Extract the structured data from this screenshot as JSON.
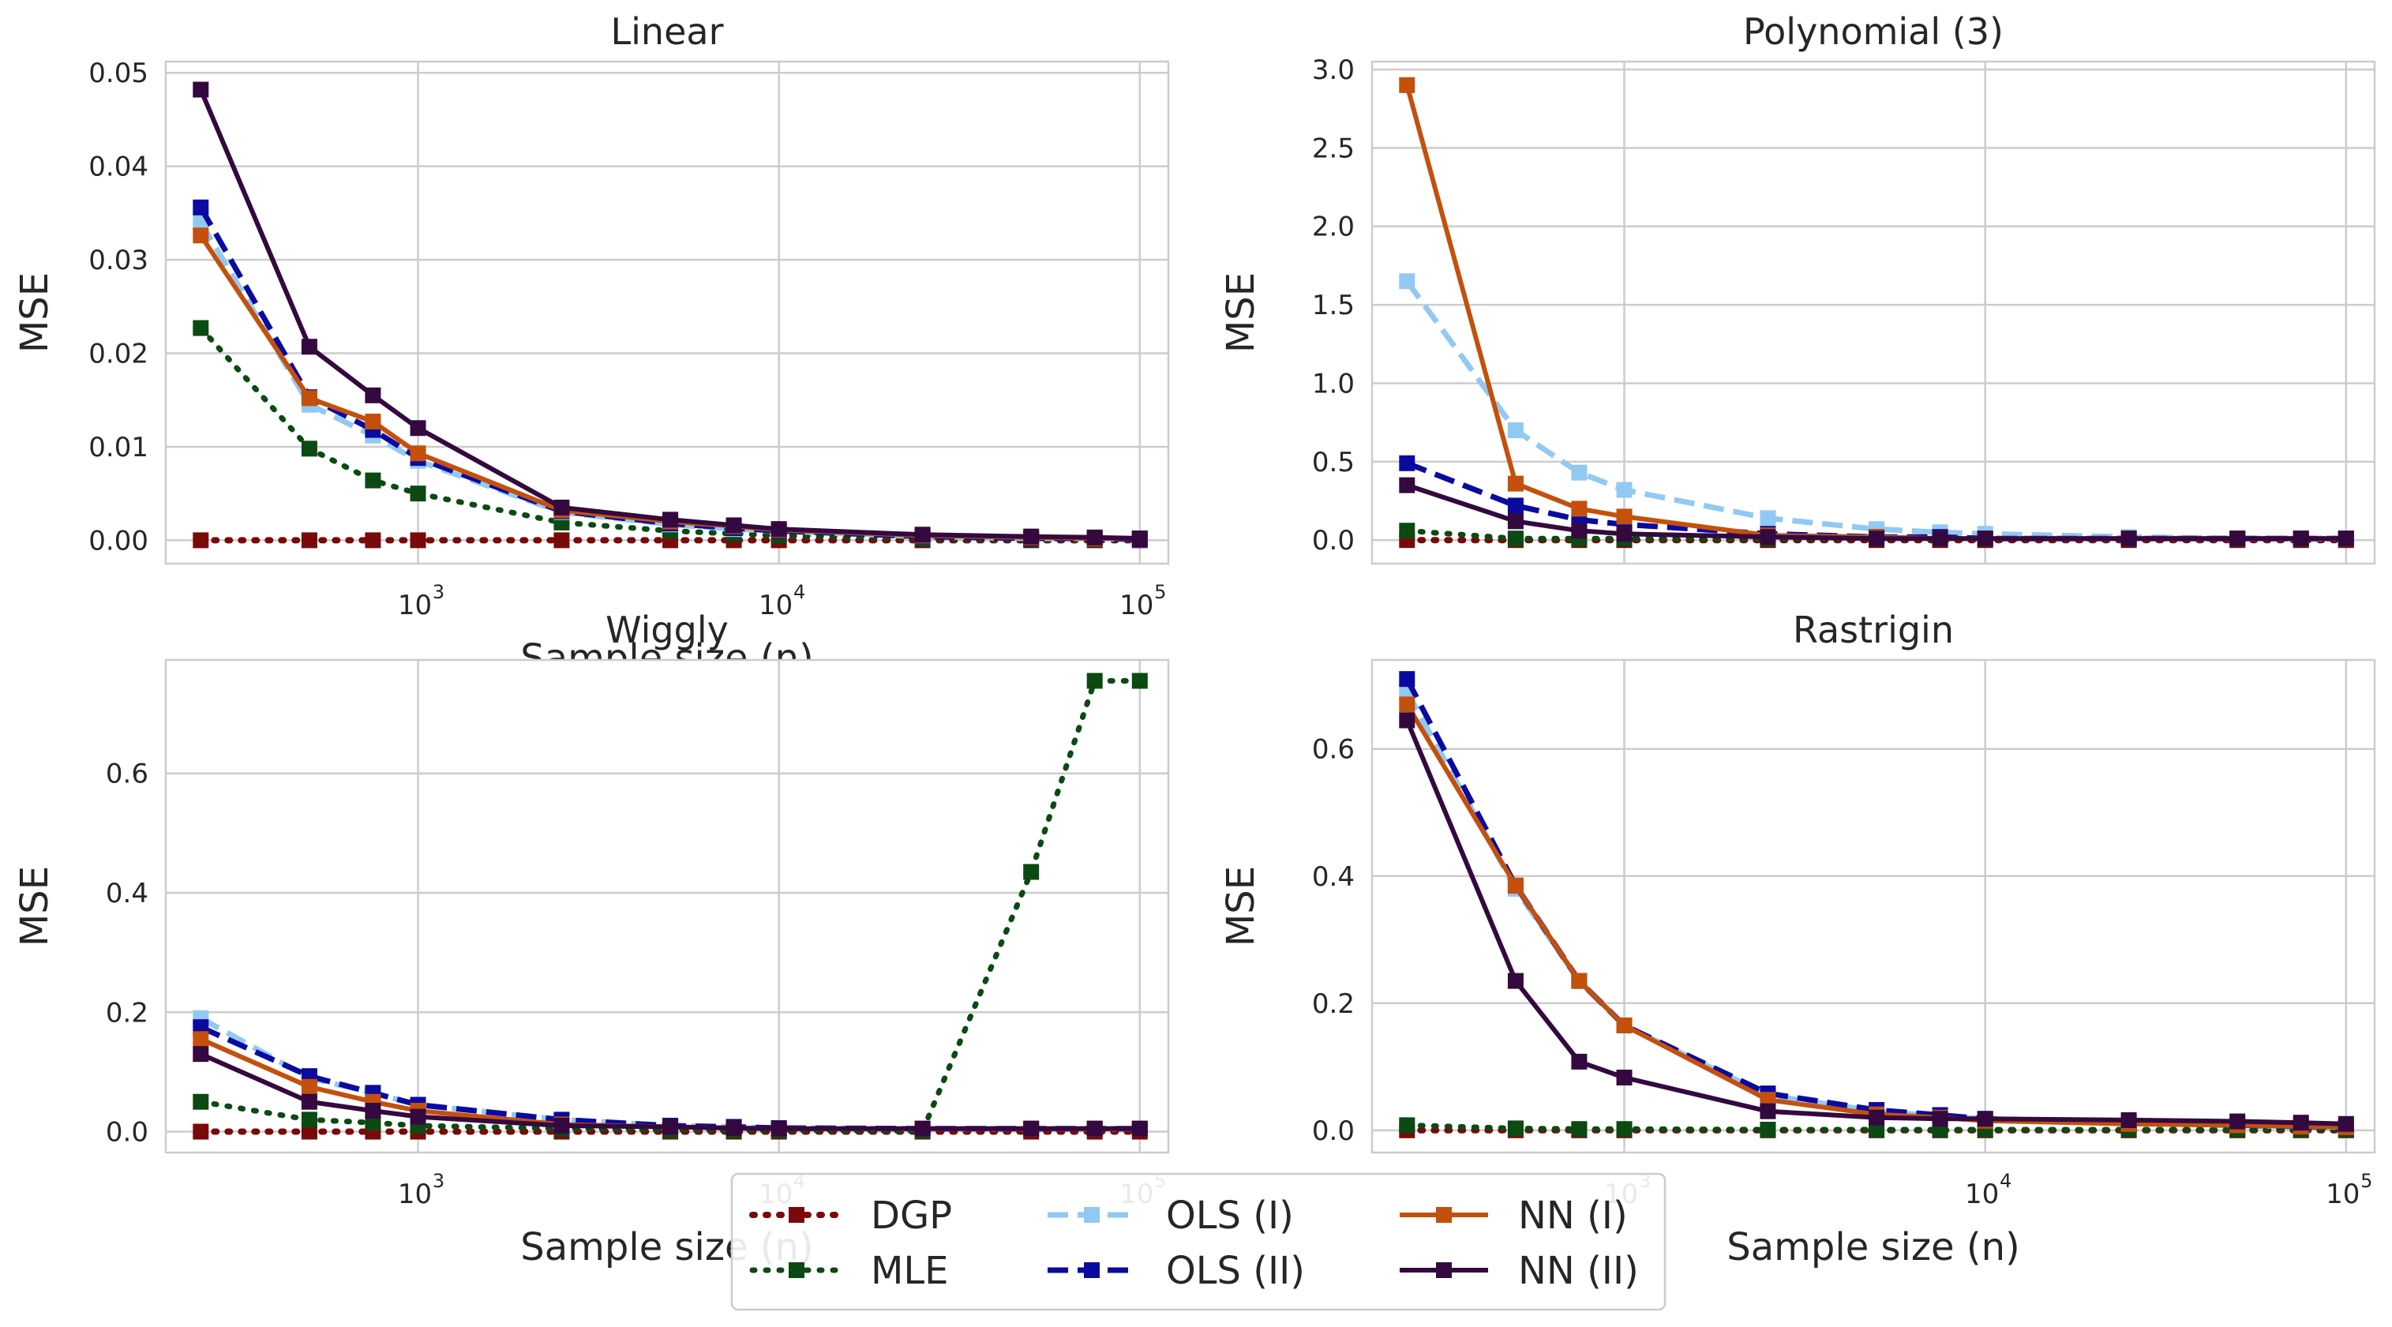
{
  "chart_data": {
    "type": "line",
    "x_scale": "log",
    "x_label": "Sample size (n)",
    "y_label": "MSE",
    "x_tick_labels": [
      {
        "value": 1000,
        "base": "10",
        "exp": "3"
      },
      {
        "value": 10000,
        "base": "10",
        "exp": "4"
      },
      {
        "value": 100000,
        "base": "10",
        "exp": "5"
      }
    ],
    "x": [
      250,
      500,
      750,
      1000,
      2500,
      5000,
      7500,
      10000,
      25000,
      50000,
      75000,
      100000
    ],
    "grid": true,
    "legend": {
      "placement": "bottom-center",
      "columns": 3,
      "entries": [
        "DGP",
        "MLE",
        "OLS (I)",
        "OLS (II)",
        "NN (I)",
        "NN (II)"
      ]
    },
    "series_styles": [
      {
        "name": "DGP",
        "color": "#7a0a0a",
        "dash": "dotted",
        "width": 8
      },
      {
        "name": "MLE",
        "color": "#0b4a12",
        "dash": "dotted",
        "width": 7
      },
      {
        "name": "OLS (I)",
        "color": "#92c9f3",
        "dash": "dashed",
        "width": 7
      },
      {
        "name": "OLS (II)",
        "color": "#0a0aa0",
        "dash": "dashed",
        "width": 7
      },
      {
        "name": "NN (I)",
        "color": "#c4500c",
        "dash": "solid",
        "width": 6
      },
      {
        "name": "NN (II)",
        "color": "#34093f",
        "dash": "solid",
        "width": 6
      }
    ],
    "panels": [
      {
        "title": "Linear",
        "ylim": [
          -0.0025,
          0.0512
        ],
        "yticks": [
          0,
          0.01,
          0.02,
          0.03,
          0.04,
          0.05
        ],
        "ytick_labels": [
          "0.00",
          "0.01",
          "0.02",
          "0.03",
          "0.04",
          "0.05"
        ],
        "show_x_ticks": true,
        "show_x_label": true,
        "series": [
          {
            "name": "DGP",
            "values": [
              0,
              0,
              0,
              0,
              0,
              0,
              0,
              0,
              0,
              0,
              0,
              0
            ]
          },
          {
            "name": "MLE",
            "values": [
              0.0227,
              0.0098,
              0.0064,
              0.005,
              0.0019,
              0.001,
              0.0007,
              0.0005,
              0.0002,
              0.0001,
              0.0001,
              0.0001
            ]
          },
          {
            "name": "OLS (I)",
            "values": [
              0.034,
              0.0145,
              0.0112,
              0.0085,
              0.003,
              0.0017,
              0.0012,
              0.001,
              0.0004,
              0.0002,
              0.0002,
              0.0001
            ]
          },
          {
            "name": "OLS (II)",
            "values": [
              0.0356,
              0.0153,
              0.0118,
              0.0088,
              0.0031,
              0.0018,
              0.0013,
              0.001,
              0.0004,
              0.0002,
              0.0002,
              0.0001
            ]
          },
          {
            "name": "NN (I)",
            "values": [
              0.0326,
              0.0152,
              0.0127,
              0.0093,
              0.0032,
              0.002,
              0.0015,
              0.0011,
              0.0005,
              0.0003,
              0.0002,
              0.0002
            ]
          },
          {
            "name": "NN (II)",
            "values": [
              0.0482,
              0.0207,
              0.0155,
              0.012,
              0.0035,
              0.0022,
              0.0016,
              0.0012,
              0.0006,
              0.0004,
              0.0003,
              0.0002
            ]
          }
        ]
      },
      {
        "title": "Polynomial (3)",
        "ylim": [
          -0.15,
          3.05
        ],
        "yticks": [
          0,
          0.5,
          1.0,
          1.5,
          2.0,
          2.5,
          3.0
        ],
        "ytick_labels": [
          "0.0",
          "0.5",
          "1.0",
          "1.5",
          "2.0",
          "2.5",
          "3.0"
        ],
        "show_x_ticks": false,
        "show_x_label": false,
        "series": [
          {
            "name": "DGP",
            "values": [
              0,
              0,
              0,
              0,
              0,
              0,
              0,
              0,
              0,
              0,
              0,
              0
            ]
          },
          {
            "name": "MLE",
            "values": [
              0.06,
              0.01,
              0.01,
              0.01,
              0.01,
              0.01,
              0.01,
              0.01,
              0.01,
              0.01,
              0.01,
              0.01
            ]
          },
          {
            "name": "OLS (I)",
            "values": [
              1.65,
              0.7,
              0.43,
              0.32,
              0.14,
              0.07,
              0.05,
              0.04,
              0.02,
              0.01,
              0.01,
              0.01
            ]
          },
          {
            "name": "OLS (II)",
            "values": [
              0.49,
              0.22,
              0.13,
              0.1,
              0.04,
              0.02,
              0.02,
              0.01,
              0.01,
              0.01,
              0.01,
              0.01
            ]
          },
          {
            "name": "NN (I)",
            "values": [
              2.9,
              0.36,
              0.2,
              0.15,
              0.03,
              0.02,
              0.01,
              0.01,
              0.01,
              0.01,
              0.01,
              0.01
            ]
          },
          {
            "name": "NN (II)",
            "values": [
              0.35,
              0.12,
              0.06,
              0.04,
              0.02,
              0.01,
              0.01,
              0.01,
              0.01,
              0.01,
              0.01,
              0.01
            ]
          }
        ]
      },
      {
        "title": "Wiggly",
        "ylim": [
          -0.035,
          0.79
        ],
        "yticks": [
          0,
          0.2,
          0.4,
          0.6
        ],
        "ytick_labels": [
          "0.0",
          "0.2",
          "0.4",
          "0.6"
        ],
        "show_x_ticks": true,
        "show_x_label": true,
        "series": [
          {
            "name": "DGP",
            "values": [
              0,
              0,
              0,
              0,
              0,
              0,
              0,
              0,
              0,
              0,
              0,
              0
            ]
          },
          {
            "name": "MLE",
            "values": [
              0.05,
              0.02,
              0.015,
              0.01,
              0.005,
              0.003,
              0.002,
              0.002,
              0.001,
              0.435,
              0.755,
              0.755
            ]
          },
          {
            "name": "OLS (I)",
            "values": [
              0.19,
              0.09,
              0.065,
              0.045,
              0.02,
              0.01,
              0.008,
              0.006,
              0.005,
              0.005,
              0.005,
              0.005
            ]
          },
          {
            "name": "OLS (II)",
            "values": [
              0.175,
              0.093,
              0.065,
              0.045,
              0.02,
              0.01,
              0.008,
              0.006,
              0.005,
              0.005,
              0.005,
              0.005
            ]
          },
          {
            "name": "NN (I)",
            "values": [
              0.155,
              0.075,
              0.05,
              0.035,
              0.012,
              0.008,
              0.006,
              0.005,
              0.005,
              0.005,
              0.005,
              0.005
            ]
          },
          {
            "name": "NN (II)",
            "values": [
              0.13,
              0.05,
              0.035,
              0.025,
              0.01,
              0.008,
              0.006,
              0.005,
              0.005,
              0.005,
              0.005,
              0.005
            ]
          }
        ]
      },
      {
        "title": "Rastrigin",
        "ylim": [
          -0.035,
          0.74
        ],
        "yticks": [
          0,
          0.2,
          0.4,
          0.6
        ],
        "ytick_labels": [
          "0.0",
          "0.2",
          "0.4",
          "0.6"
        ],
        "show_x_ticks": true,
        "show_x_label": true,
        "series": [
          {
            "name": "DGP",
            "values": [
              0,
              0,
              0,
              0,
              0,
              0,
              0,
              0,
              0,
              0,
              0,
              0
            ]
          },
          {
            "name": "MLE",
            "values": [
              0.008,
              0.003,
              0.002,
              0.002,
              0.001,
              0.001,
              0.001,
              0.001,
              0.001,
              0.001,
              0.001,
              0.001
            ]
          },
          {
            "name": "OLS (I)",
            "values": [
              0.69,
              0.38,
              0.235,
              0.165,
              0.055,
              0.03,
              0.022,
              0.018,
              0.012,
              0.008,
              0.006,
              0.005
            ]
          },
          {
            "name": "OLS (II)",
            "values": [
              0.71,
              0.385,
              0.235,
              0.165,
              0.058,
              0.032,
              0.024,
              0.018,
              0.012,
              0.008,
              0.006,
              0.005
            ]
          },
          {
            "name": "NN (I)",
            "values": [
              0.67,
              0.385,
              0.235,
              0.165,
              0.048,
              0.025,
              0.02,
              0.015,
              0.01,
              0.008,
              0.006,
              0.005
            ]
          },
          {
            "name": "NN (II)",
            "values": [
              0.645,
              0.235,
              0.108,
              0.083,
              0.03,
              0.02,
              0.018,
              0.018,
              0.016,
              0.014,
              0.012,
              0.01
            ]
          }
        ]
      }
    ]
  }
}
